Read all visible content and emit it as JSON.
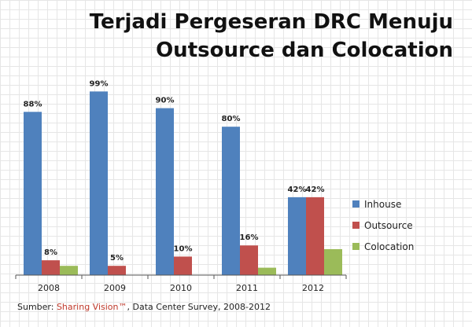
{
  "title_line1": "Terjadi Pergeseran DRC Menuju",
  "title_line2": "Outsource dan Colocation",
  "source": {
    "prefix": "Sumber: ",
    "brand": "Sharing Vision™",
    "suffix": ", Data Center Survey, 2008-2012"
  },
  "colors": {
    "Inhouse": "#4f81bd",
    "Outsource": "#c0504d",
    "Colocation": "#9bbb59"
  },
  "chart_data": {
    "type": "bar",
    "title": "",
    "xlabel": "",
    "ylabel": "",
    "ylim": [
      0,
      100
    ],
    "grid": true,
    "legend_position": "right",
    "categories": [
      "2008",
      "2009",
      "2010",
      "2011",
      "2012"
    ],
    "series": [
      {
        "name": "Inhouse",
        "values": [
          88,
          99,
          90,
          80,
          42
        ],
        "labels": [
          "88%",
          "99%",
          "90%",
          "80%",
          "42%"
        ]
      },
      {
        "name": "Outsource",
        "values": [
          8,
          5,
          10,
          16,
          42
        ],
        "labels": [
          "8%",
          "5%",
          "10%",
          "16%",
          "42%"
        ]
      },
      {
        "name": "Colocation",
        "values": [
          5,
          0,
          0,
          4,
          14
        ],
        "labels": [
          "",
          "",
          "",
          "",
          ""
        ]
      }
    ]
  }
}
